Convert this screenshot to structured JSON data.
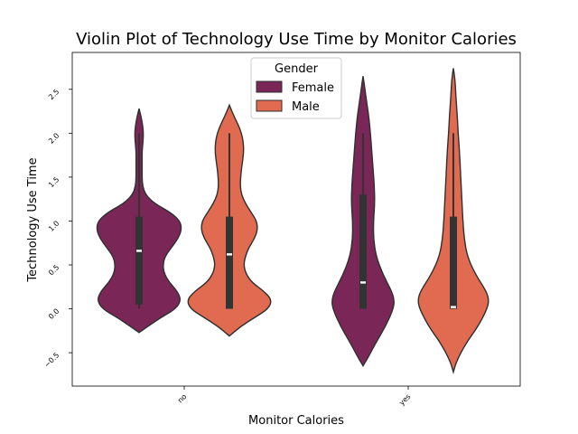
{
  "chart_data": {
    "type": "violin",
    "title": "Violin Plot of Technology Use Time by Monitor Calories",
    "xlabel": "Monitor Calories",
    "ylabel": "Technology Use Time",
    "categories": [
      "no",
      "yes"
    ],
    "ylim": [
      -0.88,
      2.92
    ],
    "yticks": [
      -0.5,
      0.0,
      0.5,
      1.0,
      1.5,
      2.0,
      2.5
    ],
    "ytick_labels": [
      "−0.5",
      "0.0",
      "0.5",
      "1.0",
      "1.5",
      "2.0",
      "2.5"
    ],
    "legend": {
      "title": "Gender",
      "position": "top-center",
      "entries": [
        "Female",
        "Male"
      ]
    },
    "colors": {
      "Female": "#7a2758",
      "Male": "#e06b50",
      "edge": "#2f2f2f",
      "box": "#333333",
      "median": "#ffffff"
    },
    "series": [
      {
        "name": "Female",
        "violins": [
          {
            "category": "no",
            "profile": [
              [
                -0.27,
                0.0
              ],
              [
                -0.2,
                0.2
              ],
              [
                -0.1,
                0.5
              ],
              [
                0.0,
                0.85
              ],
              [
                0.1,
                0.97
              ],
              [
                0.2,
                0.88
              ],
              [
                0.3,
                0.7
              ],
              [
                0.4,
                0.58
              ],
              [
                0.5,
                0.55
              ],
              [
                0.6,
                0.6
              ],
              [
                0.7,
                0.75
              ],
              [
                0.8,
                0.9
              ],
              [
                0.9,
                0.98
              ],
              [
                1.0,
                0.95
              ],
              [
                1.1,
                0.72
              ],
              [
                1.2,
                0.35
              ],
              [
                1.3,
                0.15
              ],
              [
                1.4,
                0.08
              ],
              [
                1.5,
                0.07
              ],
              [
                1.6,
                0.07
              ],
              [
                1.7,
                0.07
              ],
              [
                1.8,
                0.07
              ],
              [
                1.9,
                0.09
              ],
              [
                2.0,
                0.1
              ],
              [
                2.1,
                0.08
              ],
              [
                2.2,
                0.04
              ],
              [
                2.28,
                0.0
              ]
            ],
            "whisker": [
              0.0,
              2.0
            ],
            "q1": 0.05,
            "median": 0.66,
            "q3": 1.05
          },
          {
            "category": "yes",
            "profile": [
              [
                -0.65,
                0.0
              ],
              [
                -0.55,
                0.12
              ],
              [
                -0.4,
                0.28
              ],
              [
                -0.2,
                0.52
              ],
              [
                0.0,
                0.7
              ],
              [
                0.1,
                0.72
              ],
              [
                0.2,
                0.66
              ],
              [
                0.4,
                0.45
              ],
              [
                0.6,
                0.3
              ],
              [
                0.8,
                0.24
              ],
              [
                1.0,
                0.24
              ],
              [
                1.2,
                0.27
              ],
              [
                1.4,
                0.26
              ],
              [
                1.6,
                0.23
              ],
              [
                1.8,
                0.2
              ],
              [
                2.0,
                0.17
              ],
              [
                2.2,
                0.13
              ],
              [
                2.4,
                0.07
              ],
              [
                2.55,
                0.03
              ],
              [
                2.65,
                0.0
              ]
            ],
            "whisker": [
              0.0,
              2.0
            ],
            "q1": 0.0,
            "median": 0.3,
            "q3": 1.3
          }
        ]
      },
      {
        "name": "Male",
        "violins": [
          {
            "category": "no",
            "profile": [
              [
                -0.31,
                0.0
              ],
              [
                -0.2,
                0.26
              ],
              [
                -0.1,
                0.58
              ],
              [
                0.0,
                0.9
              ],
              [
                0.1,
                0.98
              ],
              [
                0.2,
                0.8
              ],
              [
                0.3,
                0.52
              ],
              [
                0.4,
                0.38
              ],
              [
                0.5,
                0.33
              ],
              [
                0.6,
                0.37
              ],
              [
                0.7,
                0.45
              ],
              [
                0.8,
                0.58
              ],
              [
                0.9,
                0.65
              ],
              [
                1.0,
                0.63
              ],
              [
                1.1,
                0.5
              ],
              [
                1.2,
                0.37
              ],
              [
                1.3,
                0.28
              ],
              [
                1.4,
                0.25
              ],
              [
                1.5,
                0.26
              ],
              [
                1.6,
                0.28
              ],
              [
                1.7,
                0.31
              ],
              [
                1.8,
                0.33
              ],
              [
                1.9,
                0.32
              ],
              [
                2.0,
                0.28
              ],
              [
                2.1,
                0.2
              ],
              [
                2.2,
                0.1
              ],
              [
                2.32,
                0.0
              ]
            ],
            "whisker": [
              0.0,
              2.0
            ],
            "q1": 0.0,
            "median": 0.62,
            "q3": 1.05
          },
          {
            "category": "yes",
            "profile": [
              [
                -0.72,
                0.0
              ],
              [
                -0.6,
                0.07
              ],
              [
                -0.4,
                0.28
              ],
              [
                -0.2,
                0.57
              ],
              [
                0.0,
                0.78
              ],
              [
                0.1,
                0.82
              ],
              [
                0.2,
                0.76
              ],
              [
                0.4,
                0.5
              ],
              [
                0.6,
                0.32
              ],
              [
                0.8,
                0.25
              ],
              [
                1.0,
                0.22
              ],
              [
                1.2,
                0.2
              ],
              [
                1.4,
                0.18
              ],
              [
                1.6,
                0.16
              ],
              [
                1.8,
                0.14
              ],
              [
                2.0,
                0.11
              ],
              [
                2.2,
                0.09
              ],
              [
                2.4,
                0.06
              ],
              [
                2.6,
                0.04
              ],
              [
                2.74,
                0.0
              ]
            ],
            "whisker": [
              0.0,
              2.0
            ],
            "q1": 0.0,
            "median": 0.02,
            "q3": 1.05
          }
        ]
      }
    ]
  }
}
